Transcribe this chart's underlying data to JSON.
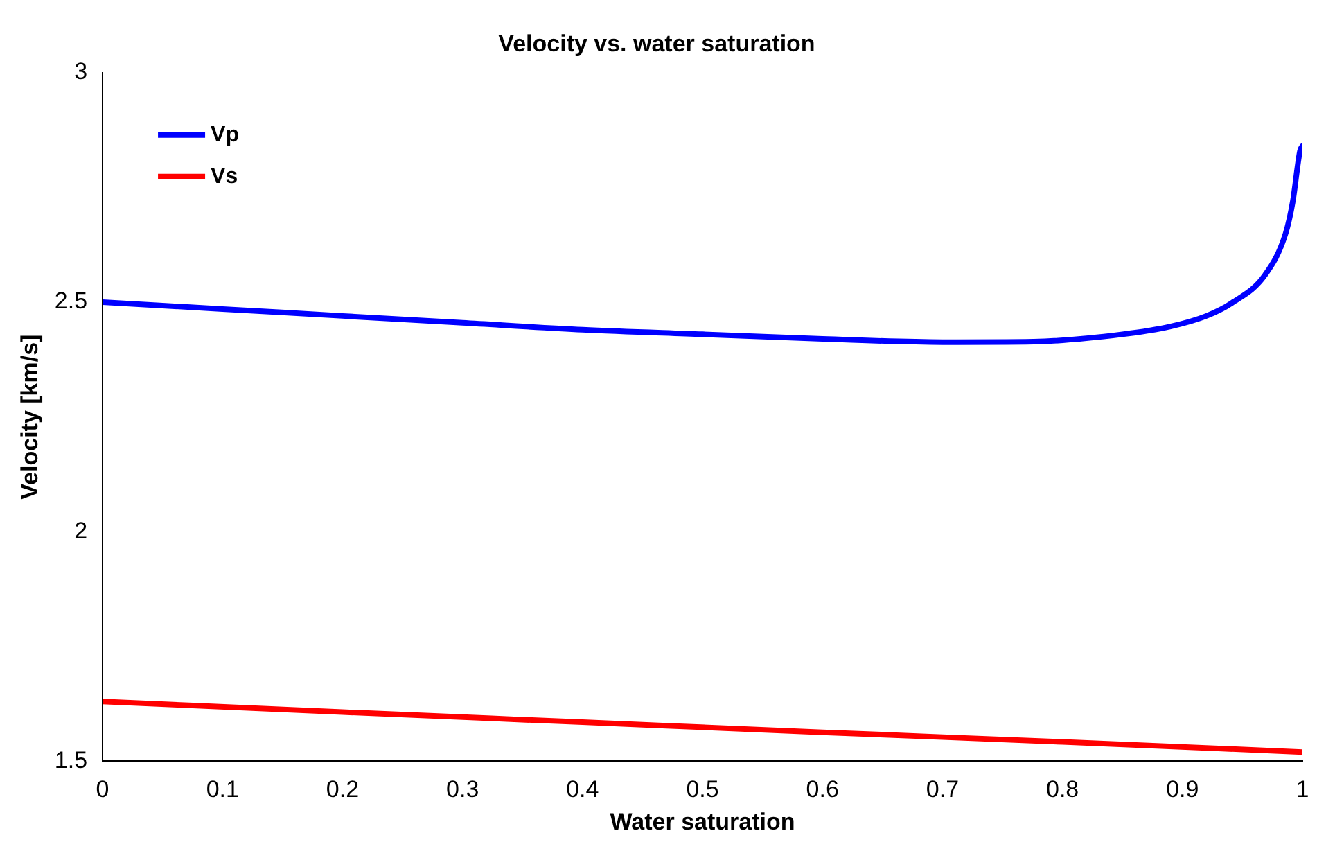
{
  "chart_data": {
    "type": "line",
    "title": "Velocity vs. water saturation",
    "xlabel": "Water saturation",
    "ylabel": "Velocity [km/s]",
    "xlim": [
      0,
      1
    ],
    "xticks": [
      0,
      0.1,
      0.2,
      0.3,
      0.4,
      0.5,
      0.6,
      0.7,
      0.8,
      0.9,
      1
    ],
    "ylim": [
      1.5,
      3
    ],
    "yticks": [
      1.5,
      2,
      2.5,
      3
    ],
    "grid": false,
    "legend": "top left",
    "series": [
      {
        "name": "Vp",
        "color": "#0000ff",
        "x": [
          0,
          0.1,
          0.2,
          0.3,
          0.4,
          0.5,
          0.6,
          0.7,
          0.776,
          0.85,
          0.89,
          0.92,
          0.941,
          0.969,
          0.986,
          0.992,
          0.998,
          1
        ],
        "values": [
          2.5,
          2.485,
          2.47,
          2.455,
          2.44,
          2.43,
          2.42,
          2.413,
          2.414,
          2.43,
          2.447,
          2.47,
          2.498,
          2.56,
          2.65,
          2.72,
          2.83,
          2.84
        ]
      },
      {
        "name": "Vs",
        "color": "#ff0000",
        "x": [
          0,
          0.2,
          0.4,
          0.6,
          0.8,
          1
        ],
        "values": [
          1.63,
          1.607,
          1.585,
          1.563,
          1.542,
          1.52
        ]
      }
    ]
  }
}
